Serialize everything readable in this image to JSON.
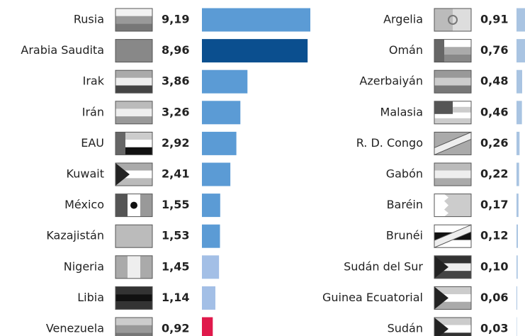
{
  "chart_data": [
    {
      "type": "bar",
      "orientation": "horizontal",
      "categories": [
        "Rusia",
        "Arabia Saudita",
        "Irak",
        "Irán",
        "EAU",
        "Kuwait",
        "México",
        "Kazajistán",
        "Nigeria",
        "Libia",
        "Venezuela"
      ],
      "values": [
        9.19,
        8.96,
        3.86,
        3.26,
        2.92,
        2.41,
        1.55,
        1.53,
        1.45,
        1.14,
        0.92
      ],
      "value_labels": [
        "9,19",
        "8,96",
        "3,86",
        "3,26",
        "2,92",
        "2,41",
        "1,55",
        "1,53",
        "1,45",
        "1,14",
        "0,92"
      ],
      "colors": [
        "#5b9bd5",
        "#0b4f8f",
        "#5b9bd5",
        "#5b9bd5",
        "#5b9bd5",
        "#5b9bd5",
        "#5b9bd5",
        "#5b9bd5",
        "#a3bfe6",
        "#a3bfe6",
        "#e0194b"
      ]
    },
    {
      "type": "bar",
      "orientation": "horizontal",
      "categories": [
        "Argelia",
        "Omán",
        "Azerbaiyán",
        "Malasia",
        "R. D. Congo",
        "Gabón",
        "Baréin",
        "Brunéi",
        "Sudán del Sur",
        "Guinea Ecuatorial",
        "Sudán"
      ],
      "values": [
        0.91,
        0.76,
        0.48,
        0.46,
        0.26,
        0.22,
        0.17,
        0.12,
        0.1,
        0.06,
        0.03
      ],
      "value_labels": [
        "0,91",
        "0,76",
        "0,48",
        "0,46",
        "0,26",
        "0,22",
        "0,17",
        "0,12",
        "0,10",
        "0,06",
        "0,03"
      ],
      "colors": [
        "#a9c4e2",
        "#a9c4e2",
        "#a9c4e2",
        "#a9c4e2",
        "#a9c4e2",
        "#a9c4e2",
        "#a9c4e2",
        "#a9c4e2",
        "#a9c4e2",
        "#a9c4e2",
        "#a9c4e2"
      ]
    }
  ]
}
